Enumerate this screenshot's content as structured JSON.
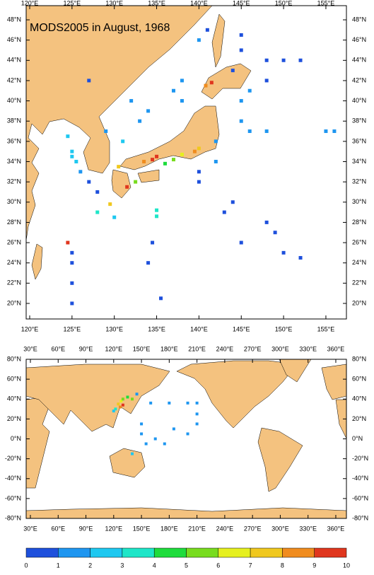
{
  "top_map": {
    "title": "MODS2005 in August, 1968",
    "x_tick_labels": [
      "120°E",
      "125°E",
      "130°E",
      "135°E",
      "140°E",
      "145°E",
      "150°E",
      "155°E"
    ],
    "y_tick_labels": [
      "20°N",
      "22°N",
      "24°N",
      "26°N",
      "28°N",
      "30°N",
      "32°N",
      "34°N",
      "36°N",
      "38°N",
      "40°N",
      "42°N",
      "44°N",
      "46°N",
      "48°N"
    ],
    "cells": {
      "lon": [
        134.5,
        135,
        133.5,
        131.5,
        130.5,
        141.5,
        140.8,
        139.5,
        140,
        138,
        132.5,
        137,
        136,
        125,
        125,
        125.5,
        124.5,
        126,
        127,
        128,
        124.5,
        125,
        125,
        125,
        125,
        128,
        129.5,
        130,
        135,
        135,
        134.5,
        134,
        135.5,
        145,
        148,
        149,
        150,
        152,
        143,
        144,
        140,
        140,
        142,
        142,
        145,
        146,
        148,
        155,
        156,
        145,
        146,
        148,
        144,
        145,
        148,
        150,
        152,
        138,
        137,
        138,
        132,
        133,
        134,
        129,
        131,
        127,
        140,
        141,
        145
      ],
      "lat": [
        34.2,
        34.5,
        34,
        31.5,
        33.5,
        41.8,
        41.5,
        35,
        35.3,
        34.7,
        32,
        34.2,
        33.8,
        35,
        34.5,
        34,
        36.5,
        33,
        32,
        31,
        26,
        25,
        24,
        22,
        20,
        29,
        29.8,
        28.5,
        28.6,
        29.2,
        26,
        24,
        20.5,
        26,
        28,
        27,
        25,
        24.5,
        29,
        30,
        32,
        33,
        34,
        36,
        38,
        37,
        37,
        37,
        37,
        40,
        41,
        42,
        43,
        45,
        44,
        44,
        44,
        40,
        41,
        42,
        40,
        38,
        39,
        37,
        36,
        42,
        46,
        47,
        46.5
      ],
      "values": [
        9.5,
        9,
        8.5,
        9,
        7.5,
        9,
        8,
        8,
        7,
        6.5,
        5.5,
        5,
        4.5,
        2.5,
        2.5,
        2.5,
        2.5,
        1.5,
        0.5,
        0.5,
        9,
        0.5,
        0.5,
        0.5,
        0.5,
        3.5,
        7,
        2,
        3.5,
        3,
        0.5,
        0.5,
        0.5,
        0.5,
        0.5,
        0.5,
        0.5,
        0.5,
        0.5,
        0.5,
        0.5,
        0.5,
        1.5,
        1,
        1,
        1,
        1,
        1,
        1,
        1,
        1,
        0.5,
        0.5,
        0.5,
        0.5,
        0.5,
        0.5,
        1,
        1,
        1.5,
        1,
        1,
        1,
        1.5,
        2,
        0.5,
        1,
        0.5,
        0.5
      ]
    }
  },
  "bottom_map": {
    "x_tick_labels": [
      "30°E",
      "60°E",
      "90°E",
      "120°E",
      "150°E",
      "180°E",
      "210°E",
      "240°E",
      "270°E",
      "300°E",
      "330°E",
      "360°E"
    ],
    "y_tick_labels": [
      "-80°N",
      "-60°N",
      "-40°N",
      "-20°N",
      "0°N",
      "20°N",
      "40°N",
      "60°N",
      "80°N"
    ],
    "cells": {
      "lon": [
        125,
        128,
        130,
        135,
        140,
        122,
        127,
        130,
        120,
        145,
        160,
        180,
        200,
        210,
        210,
        210,
        150,
        150,
        155,
        165,
        175,
        140,
        185,
        200
      ],
      "lat": [
        35,
        38,
        40,
        42,
        40,
        30,
        32,
        34,
        28,
        45,
        36,
        36,
        36,
        36,
        25,
        15,
        15,
        5,
        -5,
        0,
        -5,
        -15,
        10,
        5
      ],
      "values": [
        7,
        6,
        5,
        4,
        5,
        3,
        8,
        9,
        2,
        1,
        1,
        1,
        1,
        1,
        1,
        1,
        1,
        1,
        1,
        1,
        1,
        2,
        1,
        1
      ]
    }
  },
  "colorbar": {
    "labels": [
      "0",
      "1",
      "2",
      "3",
      "4",
      "5",
      "6",
      "7",
      "8",
      "9",
      "10"
    ],
    "colors": [
      "#1e50dc",
      "#1e96f0",
      "#1ec8f0",
      "#1ee6c8",
      "#1edc3c",
      "#78dc1e",
      "#e6f01e",
      "#f0c81e",
      "#f08c1e",
      "#e0361e"
    ]
  }
}
